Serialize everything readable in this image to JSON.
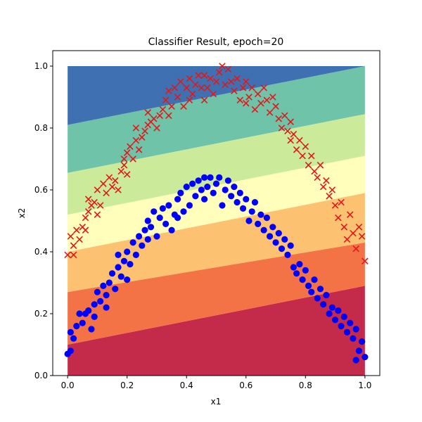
{
  "chart_data": {
    "type": "scatter",
    "title": "Classifier Result, epoch=20",
    "xlabel": "x1",
    "ylabel": "x2",
    "xlim": [
      -0.05,
      1.05
    ],
    "ylim": [
      0.0,
      1.05
    ],
    "xticks": [
      "0.0",
      "0.2",
      "0.4",
      "0.6",
      "0.8",
      "1.0"
    ],
    "yticks": [
      "0.0",
      "0.2",
      "0.4",
      "0.6",
      "0.8",
      "1.0"
    ],
    "grid": false,
    "legend": "none",
    "decision_regions": {
      "domain_x": [
        0,
        1
      ],
      "domain_y": [
        0,
        1
      ],
      "bands": [
        {
          "level": 1,
          "color": "#c42b4a",
          "boundary_at_x0": 0.0,
          "boundary_at_x1": 0.0
        },
        {
          "level": 2,
          "color": "#f47346",
          "boundary_at_x0": 0.1,
          "boundary_at_x1": 0.29
        },
        {
          "level": 3,
          "color": "#fdc172",
          "boundary_at_x0": 0.27,
          "boundary_at_x1": 0.43
        },
        {
          "level": 4,
          "color": "#ffffbb",
          "boundary_at_x0": 0.4,
          "boundary_at_x1": 0.59
        },
        {
          "level": 5,
          "color": "#cceb9a",
          "boundary_at_x0": 0.52,
          "boundary_at_x1": 0.71
        },
        {
          "level": 6,
          "color": "#6ec3a8",
          "boundary_at_x0": 0.655,
          "boundary_at_x1": 0.845
        },
        {
          "level": 7,
          "color": "#3f71b2",
          "boundary_at_x0": 0.81,
          "boundary_at_x1": 1.0
        }
      ]
    },
    "series": [
      {
        "marker": "x",
        "color": "#e0181c",
        "points": [
          [
            0.0,
            0.39
          ],
          [
            0.01,
            0.45
          ],
          [
            0.02,
            0.42
          ],
          [
            0.02,
            0.39
          ],
          [
            0.03,
            0.47
          ],
          [
            0.04,
            0.44
          ],
          [
            0.05,
            0.48
          ],
          [
            0.06,
            0.47
          ],
          [
            0.06,
            0.51
          ],
          [
            0.07,
            0.53
          ],
          [
            0.07,
            0.57
          ],
          [
            0.08,
            0.55
          ],
          [
            0.09,
            0.56
          ],
          [
            0.1,
            0.52
          ],
          [
            0.1,
            0.6
          ],
          [
            0.11,
            0.55
          ],
          [
            0.12,
            0.62
          ],
          [
            0.13,
            0.59
          ],
          [
            0.14,
            0.64
          ],
          [
            0.15,
            0.61
          ],
          [
            0.16,
            0.63
          ],
          [
            0.17,
            0.6
          ],
          [
            0.18,
            0.66
          ],
          [
            0.19,
            0.7
          ],
          [
            0.19,
            0.68
          ],
          [
            0.2,
            0.65
          ],
          [
            0.2,
            0.72
          ],
          [
            0.21,
            0.74
          ],
          [
            0.22,
            0.7
          ],
          [
            0.23,
            0.76
          ],
          [
            0.23,
            0.8
          ],
          [
            0.24,
            0.73
          ],
          [
            0.25,
            0.77
          ],
          [
            0.26,
            0.79
          ],
          [
            0.27,
            0.81
          ],
          [
            0.27,
            0.85
          ],
          [
            0.28,
            0.82
          ],
          [
            0.29,
            0.83
          ],
          [
            0.3,
            0.8
          ],
          [
            0.31,
            0.84
          ],
          [
            0.32,
            0.86
          ],
          [
            0.33,
            0.89
          ],
          [
            0.34,
            0.84
          ],
          [
            0.34,
            0.92
          ],
          [
            0.35,
            0.87
          ],
          [
            0.36,
            0.93
          ],
          [
            0.37,
            0.9
          ],
          [
            0.38,
            0.95
          ],
          [
            0.39,
            0.87
          ],
          [
            0.4,
            0.93
          ],
          [
            0.41,
            0.96
          ],
          [
            0.41,
            0.89
          ],
          [
            0.42,
            0.91
          ],
          [
            0.43,
            0.94
          ],
          [
            0.44,
            0.97
          ],
          [
            0.45,
            0.93
          ],
          [
            0.46,
            0.97
          ],
          [
            0.46,
            0.89
          ],
          [
            0.47,
            0.93
          ],
          [
            0.48,
            0.96
          ],
          [
            0.49,
            0.91
          ],
          [
            0.5,
            0.95
          ],
          [
            0.51,
            0.98
          ],
          [
            0.52,
            1.0
          ],
          [
            0.53,
            0.94
          ],
          [
            0.54,
            0.99
          ],
          [
            0.55,
            0.95
          ],
          [
            0.56,
            0.92
          ],
          [
            0.57,
            0.96
          ],
          [
            0.58,
            0.89
          ],
          [
            0.59,
            0.93
          ],
          [
            0.6,
            0.95
          ],
          [
            0.6,
            0.88
          ],
          [
            0.61,
            0.9
          ],
          [
            0.62,
            0.93
          ],
          [
            0.63,
            0.86
          ],
          [
            0.64,
            0.91
          ],
          [
            0.65,
            0.88
          ],
          [
            0.66,
            0.93
          ],
          [
            0.67,
            0.89
          ],
          [
            0.68,
            0.85
          ],
          [
            0.69,
            0.9
          ],
          [
            0.7,
            0.87
          ],
          [
            0.71,
            0.83
          ],
          [
            0.72,
            0.8
          ],
          [
            0.73,
            0.84
          ],
          [
            0.74,
            0.79
          ],
          [
            0.75,
            0.82
          ],
          [
            0.75,
            0.76
          ],
          [
            0.76,
            0.78
          ],
          [
            0.77,
            0.73
          ],
          [
            0.78,
            0.76
          ],
          [
            0.79,
            0.71
          ],
          [
            0.8,
            0.74
          ],
          [
            0.81,
            0.68
          ],
          [
            0.82,
            0.71
          ],
          [
            0.83,
            0.66
          ],
          [
            0.84,
            0.64
          ],
          [
            0.85,
            0.68
          ],
          [
            0.86,
            0.61
          ],
          [
            0.87,
            0.63
          ],
          [
            0.88,
            0.58
          ],
          [
            0.89,
            0.6
          ],
          [
            0.9,
            0.55
          ],
          [
            0.91,
            0.51
          ],
          [
            0.92,
            0.56
          ],
          [
            0.93,
            0.48
          ],
          [
            0.94,
            0.44
          ],
          [
            0.95,
            0.52
          ],
          [
            0.96,
            0.46
          ],
          [
            0.97,
            0.41
          ],
          [
            0.98,
            0.48
          ],
          [
            0.99,
            0.45
          ],
          [
            1.0,
            0.37
          ]
        ]
      },
      {
        "marker": "o",
        "color": "#0000ff",
        "points": [
          [
            0.0,
            0.07
          ],
          [
            0.01,
            0.08
          ],
          [
            0.01,
            0.14
          ],
          [
            0.02,
            0.12
          ],
          [
            0.03,
            0.16
          ],
          [
            0.04,
            0.2
          ],
          [
            0.05,
            0.17
          ],
          [
            0.06,
            0.2
          ],
          [
            0.07,
            0.21
          ],
          [
            0.08,
            0.15
          ],
          [
            0.09,
            0.23
          ],
          [
            0.09,
            0.19
          ],
          [
            0.1,
            0.27
          ],
          [
            0.11,
            0.24
          ],
          [
            0.12,
            0.29
          ],
          [
            0.13,
            0.26
          ],
          [
            0.13,
            0.22
          ],
          [
            0.14,
            0.3
          ],
          [
            0.15,
            0.33
          ],
          [
            0.16,
            0.28
          ],
          [
            0.17,
            0.35
          ],
          [
            0.17,
            0.39
          ],
          [
            0.18,
            0.32
          ],
          [
            0.19,
            0.37
          ],
          [
            0.2,
            0.4
          ],
          [
            0.2,
            0.31
          ],
          [
            0.21,
            0.36
          ],
          [
            0.22,
            0.43
          ],
          [
            0.23,
            0.39
          ],
          [
            0.24,
            0.45
          ],
          [
            0.25,
            0.42
          ],
          [
            0.26,
            0.47
          ],
          [
            0.27,
            0.5
          ],
          [
            0.27,
            0.44
          ],
          [
            0.28,
            0.48
          ],
          [
            0.29,
            0.53
          ],
          [
            0.3,
            0.45
          ],
          [
            0.31,
            0.51
          ],
          [
            0.32,
            0.54
          ],
          [
            0.33,
            0.49
          ],
          [
            0.34,
            0.55
          ],
          [
            0.35,
            0.47
          ],
          [
            0.36,
            0.52
          ],
          [
            0.37,
            0.57
          ],
          [
            0.37,
            0.51
          ],
          [
            0.38,
            0.59
          ],
          [
            0.39,
            0.53
          ],
          [
            0.4,
            0.61
          ],
          [
            0.41,
            0.55
          ],
          [
            0.42,
            0.62
          ],
          [
            0.43,
            0.58
          ],
          [
            0.44,
            0.63
          ],
          [
            0.45,
            0.6
          ],
          [
            0.46,
            0.64
          ],
          [
            0.46,
            0.57
          ],
          [
            0.47,
            0.61
          ],
          [
            0.48,
            0.64
          ],
          [
            0.49,
            0.59
          ],
          [
            0.5,
            0.62
          ],
          [
            0.51,
            0.64
          ],
          [
            0.52,
            0.55
          ],
          [
            0.53,
            0.6
          ],
          [
            0.54,
            0.63
          ],
          [
            0.55,
            0.58
          ],
          [
            0.56,
            0.61
          ],
          [
            0.57,
            0.56
          ],
          [
            0.58,
            0.59
          ],
          [
            0.59,
            0.54
          ],
          [
            0.6,
            0.57
          ],
          [
            0.61,
            0.5
          ],
          [
            0.62,
            0.53
          ],
          [
            0.63,
            0.56
          ],
          [
            0.64,
            0.49
          ],
          [
            0.65,
            0.52
          ],
          [
            0.66,
            0.47
          ],
          [
            0.67,
            0.51
          ],
          [
            0.68,
            0.45
          ],
          [
            0.69,
            0.48
          ],
          [
            0.7,
            0.43
          ],
          [
            0.71,
            0.46
          ],
          [
            0.72,
            0.41
          ],
          [
            0.73,
            0.44
          ],
          [
            0.74,
            0.39
          ],
          [
            0.75,
            0.42
          ],
          [
            0.76,
            0.35
          ],
          [
            0.77,
            0.33
          ],
          [
            0.78,
            0.36
          ],
          [
            0.79,
            0.31
          ],
          [
            0.8,
            0.34
          ],
          [
            0.81,
            0.29
          ],
          [
            0.82,
            0.27
          ],
          [
            0.83,
            0.31
          ],
          [
            0.84,
            0.25
          ],
          [
            0.85,
            0.28
          ],
          [
            0.86,
            0.23
          ],
          [
            0.87,
            0.26
          ],
          [
            0.88,
            0.2
          ],
          [
            0.89,
            0.22
          ],
          [
            0.9,
            0.18
          ],
          [
            0.91,
            0.21
          ],
          [
            0.92,
            0.16
          ],
          [
            0.93,
            0.19
          ],
          [
            0.94,
            0.14
          ],
          [
            0.95,
            0.17
          ],
          [
            0.96,
            0.12
          ],
          [
            0.97,
            0.15
          ],
          [
            0.98,
            0.08
          ],
          [
            0.99,
            0.11
          ],
          [
            1.0,
            0.06
          ],
          [
            0.97,
            0.05
          ]
        ]
      }
    ]
  }
}
